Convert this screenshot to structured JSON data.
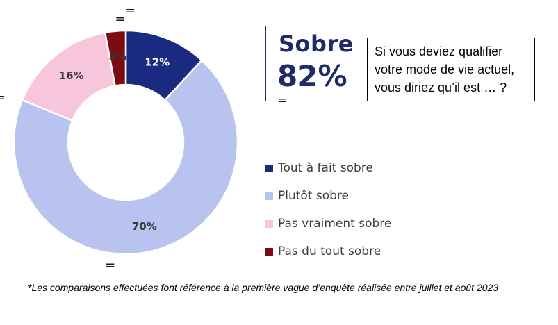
{
  "chart_data": {
    "type": "pie",
    "variant": "donut",
    "title": "",
    "categories": [
      "Tout à fait sobre",
      "Plutôt sobre",
      "Pas vraiment sobre",
      "Pas du tout sobre"
    ],
    "values": [
      12,
      70,
      16,
      3
    ],
    "value_labels": [
      "12%",
      "70%",
      "16%",
      "3%"
    ],
    "colors": [
      "#1a2a80",
      "#b8c3ef",
      "#f7c6da",
      "#7a0c12"
    ],
    "label_colors": [
      "#ffffff",
      "#3b3b3b",
      "#3b3b3b",
      "#3b3b3b"
    ],
    "comparison_marks": [
      "=",
      "=",
      "=",
      "="
    ],
    "legend_position": "right"
  },
  "summary": {
    "label": "Sobre",
    "value": "82%",
    "comparison": "="
  },
  "question": "Si vous deviez qualifier\nvotre mode de vie actuel,\nvous diriez qu’il est … ?",
  "legend": [
    {
      "label": "Tout à fait sobre",
      "color": "#1a2a80"
    },
    {
      "label": "Plutôt sobre",
      "color": "#b8c3ef"
    },
    {
      "label": "Pas vraiment sobre",
      "color": "#f7c6da"
    },
    {
      "label": "Pas du tout sobre",
      "color": "#7a0c12"
    }
  ],
  "footnote": "*Les comparaisons effectuées font référence à la première vague d’enquête réalisée entre juillet et août 2023"
}
